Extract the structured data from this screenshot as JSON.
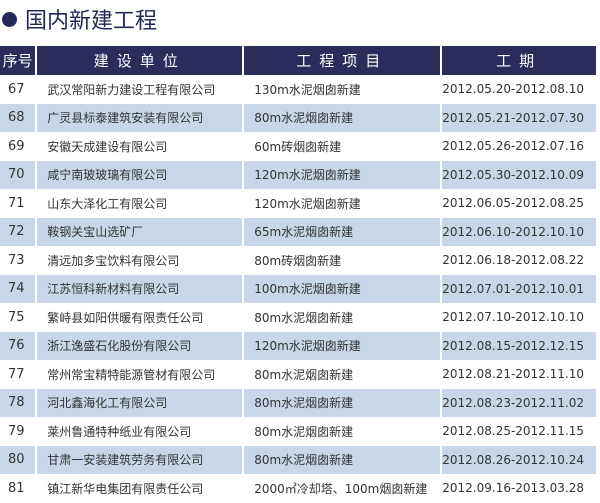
{
  "title": "国内新建工程",
  "headers": [
    "序号",
    "建设单位",
    "工程项目",
    "工期"
  ],
  "rows": [
    [
      "67",
      "武汉常阳新力建设工程有限公司",
      "130m水泥烟囱新建",
      "2012.05.20-2012.08.10"
    ],
    [
      "68",
      "广灵县标泰建筑安装有限公司",
      "80m水泥烟囱新建",
      "2012.05.21-2012.07.30"
    ],
    [
      "69",
      "安徽天成建设有限公司",
      "60m砖烟囱新建",
      "2012.05.26-2012.07.16"
    ],
    [
      "70",
      "咸宁南玻玻璃有限公司",
      "120m水泥烟囱新建",
      "2012.05.30-2012.10.09"
    ],
    [
      "71",
      "山东大泽化工有限公司",
      "120m水泥烟囱新建",
      "2012.06.05-2012.08.25"
    ],
    [
      "72",
      "鞍钢关宝山选矿厂",
      "65m水泥烟囱新建",
      "2012.06.10-2012.10.10"
    ],
    [
      "73",
      "清远加多宝饮料有限公司",
      "80m砖烟囱新建",
      "2012.06.18-2012.08.22"
    ],
    [
      "74",
      "江苏恒科新材料有限公司",
      "100m水泥烟囱新建",
      "2012.07.01-2012.10.01"
    ],
    [
      "75",
      "繁峙县如阳供暖有限责任公司",
      "80m水泥烟囱新建",
      "2012.07.10-2012.10.10"
    ],
    [
      "76",
      "浙江逸盛石化股份有限公司",
      "120m水泥烟囱新建",
      "2012.08.15-2012.12.15"
    ],
    [
      "77",
      "常州常宝精特能源管材有限公司",
      "80m水泥烟囱新建",
      "2012.08.21-2012.11.10"
    ],
    [
      "78",
      "河北鑫海化工有限公司",
      "80m水泥烟囱新建",
      "2012.08.23-2012.11.02"
    ],
    [
      "79",
      "莱州鲁通特种纸业有限公司",
      "80m水泥烟囱新建",
      "2012.08.25-2012.11.15"
    ],
    [
      "80",
      "甘肃一安装建筑劳务有限公司",
      "80m水泥烟囱新建",
      "2012.08.26-2012.10.24"
    ],
    [
      "81",
      "镇江新华电集团有限责任公司",
      "2000㎡冷却塔、100m烟囱新建",
      "2012.09.16-2013.03.28"
    ]
  ]
}
